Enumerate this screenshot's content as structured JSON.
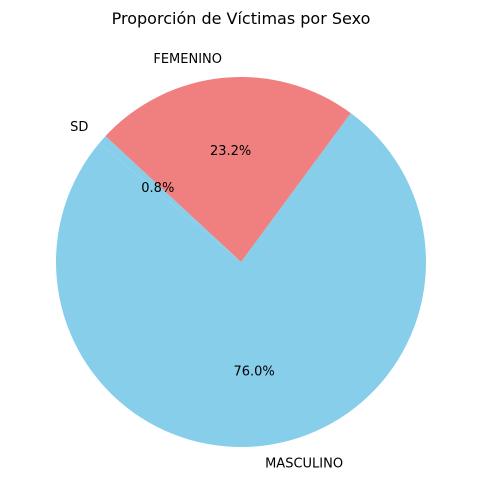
{
  "chart_data": {
    "type": "pie",
    "title": "Proporción de Víctimas por Sexo",
    "slices": [
      {
        "label": "MASCULINO",
        "value": 76.0,
        "pct_label": "76.0%",
        "color": "#87CEEB"
      },
      {
        "label": "FEMENINO",
        "value": 23.2,
        "pct_label": "23.2%",
        "color": "#F08080"
      },
      {
        "label": "SD",
        "value": 0.8,
        "pct_label": "0.8%",
        "color": "#87CEEB"
      }
    ],
    "start_angle_deg": 140,
    "direction": "counterclockwise"
  }
}
